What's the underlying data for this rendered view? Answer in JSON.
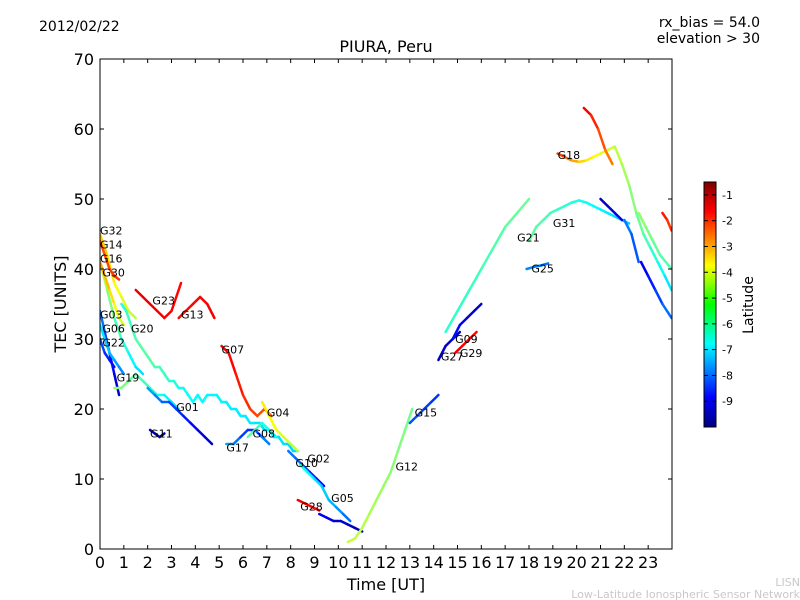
{
  "header": {
    "date": "2012/02/22",
    "rx_bias": "rx_bias = 54.0",
    "elevation": "elevation > 30"
  },
  "footer": {
    "org_short": "LISN",
    "org_long": "Low-Latitude Ionospheric Sensor Network"
  },
  "chart_data": {
    "type": "line",
    "title": "PIURA, Peru",
    "xlabel": "Time [UT]",
    "ylabel": "TEC [UNITS]",
    "xlim": [
      0,
      24
    ],
    "ylim": [
      0,
      70
    ],
    "x_ticks": [
      0,
      1,
      2,
      3,
      4,
      5,
      6,
      7,
      8,
      9,
      10,
      11,
      12,
      13,
      14,
      15,
      16,
      17,
      18,
      19,
      20,
      21,
      22,
      23
    ],
    "y_ticks": [
      0,
      10,
      20,
      30,
      40,
      50,
      60,
      70
    ],
    "colorbar": {
      "label": "Latitude",
      "range": [
        -10,
        -0.5
      ],
      "ticks": [
        -1,
        -2,
        -3,
        -4,
        -5,
        -6,
        -7,
        -8,
        -9
      ]
    },
    "series": [
      {
        "name": "G32",
        "label_at": [
          0.0,
          45.5
        ],
        "x": [
          0.0,
          0.3,
          0.6,
          0.9,
          1.2,
          1.5
        ],
        "y": [
          45,
          42,
          38,
          36,
          34,
          33
        ],
        "lat": [
          -3.5,
          -3.7,
          -4.0,
          -4.2,
          -4.5,
          -4.8
        ]
      },
      {
        "name": "G14",
        "label_at": [
          0.0,
          43.5
        ],
        "x": [
          0.0,
          0.2,
          0.4,
          0.6,
          0.8
        ],
        "y": [
          44,
          42,
          40,
          39,
          38.5
        ],
        "lat": [
          -2.5,
          -2.4,
          -2.3,
          -2.2,
          -2.1
        ]
      },
      {
        "name": "G16",
        "label_at": [
          0.0,
          41.5
        ],
        "x": [
          0.0,
          0.3,
          0.6,
          0.9,
          1.2,
          1.5,
          1.8
        ],
        "y": [
          41,
          37,
          33,
          30,
          28,
          26,
          25
        ],
        "lat": [
          -4.5,
          -5.0,
          -5.5,
          -6.0,
          -6.3,
          -6.6,
          -6.8
        ]
      },
      {
        "name": "G30",
        "label_at": [
          0.1,
          39.5
        ],
        "x": [
          0.0,
          0.2,
          0.4,
          0.6,
          0.8,
          1.0
        ],
        "y": [
          41,
          39,
          37,
          35,
          33,
          32
        ],
        "lat": [
          -3.0,
          -3.3,
          -3.6,
          -4.0,
          -4.3,
          -4.6
        ]
      },
      {
        "name": "G03",
        "label_at": [
          0.0,
          33.5
        ],
        "x": [
          0.0,
          0.2,
          0.4,
          0.6,
          0.8
        ],
        "y": [
          34,
          31,
          28,
          25,
          22
        ],
        "lat": [
          -7.5,
          -8.0,
          -8.5,
          -9.0,
          -9.3
        ]
      },
      {
        "name": "G06",
        "label_at": [
          0.1,
          31.5
        ],
        "x": [
          0.0,
          0.2,
          0.4,
          0.6,
          0.8,
          1.0
        ],
        "y": [
          32,
          30,
          28,
          27,
          26,
          25
        ],
        "lat": [
          -6.5,
          -6.8,
          -7.0,
          -7.2,
          -7.4,
          -7.6
        ]
      },
      {
        "name": "G22",
        "label_at": [
          0.1,
          29.5
        ],
        "x": [
          0.0,
          0.2,
          0.4,
          0.6
        ],
        "y": [
          30,
          28,
          27,
          26
        ],
        "lat": [
          -8.0,
          -8.3,
          -8.6,
          -8.8
        ]
      },
      {
        "name": "G20",
        "label_at": [
          1.3,
          31.5
        ],
        "x": [
          0.9,
          1.1,
          1.3,
          1.5,
          1.7,
          1.9,
          2.1,
          2.3,
          2.5,
          2.7,
          2.9,
          3.1,
          3.3,
          3.5,
          3.7,
          3.9,
          4.1,
          4.3,
          4.5,
          4.7,
          4.9,
          5.1,
          5.3,
          5.5,
          5.7,
          5.9,
          6.1,
          6.3,
          6.5,
          6.7,
          6.9,
          7.1,
          7.3,
          7.5,
          7.7,
          7.9,
          8.1,
          8.3
        ],
        "y": [
          35,
          34,
          32,
          30,
          29,
          28,
          27,
          26,
          26,
          25,
          24,
          24,
          23,
          23,
          22,
          21,
          22,
          21,
          22,
          22,
          22,
          21,
          21,
          20,
          20,
          19,
          19,
          18,
          18,
          18,
          17,
          17,
          16,
          16,
          15,
          15,
          14,
          14
        ],
        "lat": [
          -6.2,
          -6.0,
          -5.8,
          -5.7,
          -5.6,
          -5.6,
          -5.6,
          -5.7,
          -5.8,
          -5.9,
          -6.0,
          -6.1,
          -6.2,
          -6.3,
          -6.3,
          -6.4,
          -6.4,
          -6.4,
          -6.5,
          -6.5,
          -6.5,
          -6.5,
          -6.5,
          -6.6,
          -6.6,
          -6.6,
          -6.6,
          -6.6,
          -6.6,
          -6.7,
          -6.7,
          -6.7,
          -6.7,
          -6.7,
          -6.7,
          -6.8,
          -6.8,
          -6.8
        ]
      },
      {
        "name": "G23",
        "label_at": [
          2.2,
          35.5
        ],
        "x": [
          1.5,
          1.8,
          2.1,
          2.4,
          2.7,
          3.0,
          3.2,
          3.4
        ],
        "y": [
          37,
          36,
          35,
          34,
          33,
          34,
          36,
          38
        ],
        "lat": [
          -1.5,
          -1.5,
          -1.5,
          -1.6,
          -1.6,
          -1.7,
          -1.7,
          -1.8
        ]
      },
      {
        "name": "G13",
        "label_at": [
          3.4,
          33.5
        ],
        "x": [
          3.3,
          3.6,
          3.9,
          4.2,
          4.5,
          4.8
        ],
        "y": [
          33,
          34,
          35,
          36,
          35,
          33
        ],
        "lat": [
          -1.8,
          -1.8,
          -1.7,
          -1.7,
          -1.6,
          -1.6
        ]
      },
      {
        "name": "G07",
        "label_at": [
          5.1,
          28.5
        ],
        "x": [
          5.1,
          5.4,
          5.7,
          6.0,
          6.3,
          6.6,
          6.9,
          7.2
        ],
        "y": [
          29,
          28,
          25,
          22,
          20,
          19,
          20,
          19
        ],
        "lat": [
          -1.5,
          -1.6,
          -1.8,
          -2.0,
          -2.2,
          -2.3,
          -2.4,
          -2.5
        ]
      },
      {
        "name": "G19",
        "label_at": [
          0.7,
          24.5
        ],
        "x": [
          0.6,
          0.9,
          1.2,
          1.5,
          1.8,
          2.1,
          2.4,
          2.7,
          3.0,
          3.3
        ],
        "y": [
          23,
          23,
          24,
          25,
          24,
          23,
          22,
          22,
          21,
          20
        ],
        "lat": [
          -5.0,
          -5.2,
          -5.4,
          -5.6,
          -5.8,
          -6.0,
          -6.2,
          -6.4,
          -6.6,
          -6.8
        ]
      },
      {
        "name": "G01",
        "label_at": [
          3.2,
          20.3
        ],
        "x": [
          2.0,
          2.3,
          2.6,
          2.9,
          3.2,
          3.5,
          3.8,
          4.1,
          4.4,
          4.7
        ],
        "y": [
          23,
          22,
          21,
          21,
          20,
          19,
          18,
          17,
          16,
          15
        ],
        "lat": [
          -7.2,
          -7.5,
          -7.8,
          -8.0,
          -8.3,
          -8.5,
          -8.7,
          -9.0,
          -9.2,
          -9.4
        ]
      },
      {
        "name": "G11",
        "label_at": [
          2.1,
          16.5
        ],
        "x": [
          2.1,
          2.3,
          2.5,
          2.7
        ],
        "y": [
          17,
          16.5,
          16,
          16.5
        ],
        "lat": [
          -9.5,
          -9.6,
          -9.7,
          -9.6
        ]
      },
      {
        "name": "G17",
        "label_at": [
          5.3,
          14.5
        ],
        "x": [
          5.3,
          5.6,
          5.9,
          6.2,
          6.5,
          6.8,
          7.1
        ],
        "y": [
          15,
          15,
          16,
          17,
          17,
          16,
          15
        ],
        "lat": [
          -7.0,
          -7.5,
          -8.0,
          -8.5,
          -8.2,
          -7.8,
          -7.5
        ]
      },
      {
        "name": "G08",
        "label_at": [
          6.4,
          16.5
        ],
        "x": [
          6.2,
          6.5,
          6.8,
          7.1,
          7.4
        ],
        "y": [
          16,
          17,
          18,
          17,
          16
        ],
        "lat": [
          -5.5,
          -5.8,
          -6.0,
          -6.3,
          -6.5
        ]
      },
      {
        "name": "G04",
        "label_at": [
          7.0,
          19.5
        ],
        "x": [
          6.8,
          7.1,
          7.4,
          7.7,
          8.0,
          8.3
        ],
        "y": [
          21,
          19,
          17,
          16,
          15,
          14
        ],
        "lat": [
          -3.8,
          -4.0,
          -4.2,
          -4.4,
          -4.6,
          -4.8
        ]
      },
      {
        "name": "G10",
        "label_at": [
          8.2,
          12.3
        ],
        "x": [
          7.9,
          8.2,
          8.5,
          8.8,
          9.1,
          9.4
        ],
        "y": [
          14,
          13,
          12,
          11,
          10,
          9
        ],
        "lat": [
          -7.6,
          -7.8,
          -8.0,
          -8.3,
          -8.6,
          -8.8
        ]
      },
      {
        "name": "G02",
        "label_at": [
          8.7,
          12.9
        ],
        "x": [
          8.4,
          8.7,
          9.0,
          9.3,
          9.6,
          9.9,
          10.2,
          10.5
        ],
        "y": [
          12,
          11,
          10,
          9,
          7,
          6,
          5,
          4
        ],
        "lat": [
          -6.2,
          -6.4,
          -6.6,
          -6.8,
          -7.0,
          -7.3,
          -7.6,
          -8.0
        ]
      },
      {
        "name": "G28",
        "label_at": [
          8.4,
          6.1
        ],
        "x": [
          8.3,
          8.6,
          8.9,
          9.2
        ],
        "y": [
          7,
          6.5,
          6,
          5.5
        ],
        "lat": [
          -1.5,
          -1.6,
          -1.7,
          -1.8
        ]
      },
      {
        "name": "G05",
        "label_at": [
          9.7,
          7.3
        ],
        "x": [
          9.2,
          9.5,
          9.8,
          10.1,
          10.4,
          10.7,
          11.0
        ],
        "y": [
          5,
          4.5,
          4,
          4,
          3.5,
          3,
          2.5
        ],
        "lat": [
          -8.8,
          -9.0,
          -9.2,
          -9.3,
          -9.4,
          -9.5,
          -9.6
        ]
      },
      {
        "name": "G12",
        "label_at": [
          12.4,
          11.8
        ],
        "x": [
          10.4,
          10.7,
          11.0,
          11.3,
          11.6,
          11.9,
          12.2,
          12.5,
          12.8,
          13.1
        ],
        "y": [
          1,
          1.5,
          3,
          5,
          7,
          9,
          11,
          14,
          17,
          20
        ],
        "lat": [
          -4.5,
          -4.6,
          -4.7,
          -4.8,
          -4.9,
          -5.0,
          -5.1,
          -5.2,
          -5.3,
          -5.4
        ]
      },
      {
        "name": "G15",
        "label_at": [
          13.2,
          19.5
        ],
        "x": [
          13.0,
          13.3,
          13.6,
          13.9,
          14.2
        ],
        "y": [
          18,
          19,
          20,
          21,
          22
        ],
        "lat": [
          -8.0,
          -8.1,
          -8.2,
          -8.3,
          -8.4
        ]
      },
      {
        "name": "G27",
        "label_at": [
          14.3,
          27.5
        ],
        "x": [
          14.2,
          14.5,
          14.8,
          15.1
        ],
        "y": [
          27,
          29,
          30,
          31
        ],
        "lat": [
          -9.2,
          -9.3,
          -9.4,
          -9.5
        ]
      },
      {
        "name": "G09",
        "label_at": [
          14.9,
          30.0
        ],
        "x": [
          14.8,
          15.1,
          15.4,
          15.7,
          16.0
        ],
        "y": [
          30,
          32,
          33,
          34,
          35
        ],
        "lat": [
          -8.6,
          -8.8,
          -9.0,
          -9.2,
          -9.4
        ]
      },
      {
        "name": "G29",
        "label_at": [
          15.1,
          28.0
        ],
        "x": [
          14.9,
          15.2,
          15.5,
          15.8
        ],
        "y": [
          28,
          29,
          30,
          31
        ],
        "lat": [
          -1.5,
          -1.6,
          -1.7,
          -1.8
        ]
      },
      {
        "name": "G21",
        "label_at": [
          17.5,
          44.5
        ],
        "x": [
          14.5,
          15.0,
          15.5,
          16.0,
          16.5,
          17.0,
          17.5,
          18.0
        ],
        "y": [
          31,
          34,
          37,
          40,
          43,
          46,
          48,
          50
        ],
        "lat": [
          -6.0,
          -6.0,
          -5.9,
          -5.8,
          -5.7,
          -5.6,
          -5.5,
          -5.4
        ]
      },
      {
        "name": "G25",
        "label_at": [
          18.1,
          40.1
        ],
        "x": [
          17.9,
          18.2,
          18.5,
          18.8
        ],
        "y": [
          40,
          40.3,
          40.5,
          40.8
        ],
        "lat": [
          -7.5,
          -7.6,
          -7.7,
          -7.8
        ]
      },
      {
        "name": "G31",
        "label_at": [
          19.0,
          46.6
        ],
        "x": [
          18.0,
          18.3,
          18.6,
          18.9,
          19.2,
          19.5,
          19.8,
          20.1,
          20.4,
          20.7,
          21.0,
          21.3,
          21.6,
          21.9,
          22.2
        ],
        "y": [
          44,
          46,
          47,
          48,
          48.5,
          49,
          49.5,
          49.8,
          49.5,
          49,
          48.5,
          48,
          47.5,
          47,
          46.5
        ],
        "lat": [
          -5.5,
          -5.6,
          -5.7,
          -5.8,
          -5.9,
          -6.0,
          -6.1,
          -6.2,
          -6.3,
          -6.4,
          -6.5,
          -6.6,
          -6.7,
          -6.8,
          -6.9
        ]
      },
      {
        "name": "G18",
        "label_at": [
          19.2,
          56.3
        ],
        "x": [
          19.2,
          19.5,
          19.8,
          20.1,
          20.4,
          20.7,
          21.0,
          21.3,
          21.6,
          21.9,
          22.2,
          22.5,
          22.8,
          23.1,
          23.4,
          23.7,
          23.98
        ],
        "y": [
          56.5,
          56,
          55.5,
          55.3,
          55.5,
          56,
          56.5,
          57,
          57.5,
          55,
          52,
          48,
          45,
          43,
          41,
          39,
          37
        ],
        "lat": [
          -2.0,
          -2.5,
          -3.0,
          -3.5,
          -3.8,
          -4.0,
          -4.2,
          -4.4,
          -4.6,
          -4.8,
          -5.0,
          -5.3,
          -5.6,
          -5.9,
          -6.2,
          -6.5,
          -6.8
        ]
      },
      {
        "name": "",
        "label_at": null,
        "x": [
          20.3,
          20.6,
          20.9,
          21.2,
          21.5
        ],
        "y": [
          63,
          62,
          60,
          57,
          55
        ],
        "lat": [
          -1.5,
          -1.8,
          -2.2,
          -2.6,
          -3.0
        ]
      },
      {
        "name": "",
        "label_at": null,
        "x": [
          21.0,
          21.3,
          21.6,
          21.9
        ],
        "y": [
          50,
          49,
          48,
          47
        ],
        "lat": [
          -9.5,
          -9.3,
          -9.1,
          -8.9
        ]
      },
      {
        "name": "",
        "label_at": null,
        "x": [
          22.0,
          22.3,
          22.6
        ],
        "y": [
          47,
          45,
          41
        ],
        "lat": [
          -7.5,
          -7.8,
          -8.2
        ]
      },
      {
        "name": "",
        "label_at": null,
        "x": [
          22.7,
          23.0,
          23.3,
          23.6,
          23.98
        ],
        "y": [
          41,
          39,
          37,
          35,
          33
        ],
        "lat": [
          -9.2,
          -8.8,
          -8.4,
          -8.0,
          -7.6
        ]
      },
      {
        "name": "",
        "label_at": null,
        "x": [
          22.6,
          22.9,
          23.2,
          23.5,
          23.98
        ],
        "y": [
          48,
          46,
          44,
          42,
          40
        ],
        "lat": [
          -5.0,
          -5.2,
          -5.4,
          -5.6,
          -5.8
        ]
      },
      {
        "name": "",
        "label_at": null,
        "x": [
          23.6,
          23.8,
          23.98
        ],
        "y": [
          48,
          47,
          45.5
        ],
        "lat": [
          -1.8,
          -2.0,
          -2.3
        ]
      }
    ]
  }
}
